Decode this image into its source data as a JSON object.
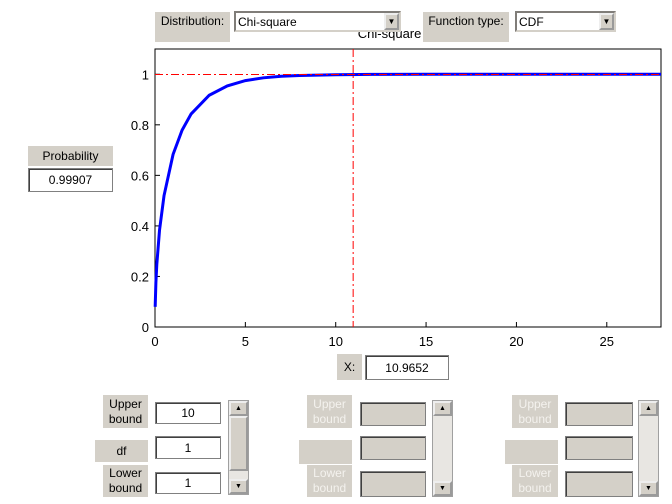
{
  "controls": {
    "distribution_label": "Distribution:",
    "distribution": "Chi-square",
    "function_type_label": "Function type:",
    "function_type": "CDF",
    "probability_label": "Probability",
    "x_label": "X:"
  },
  "parameters": [
    {
      "upper_label": "Upper bound",
      "upper": "10",
      "name": "df",
      "value": "1",
      "lower_label": "Lower bound",
      "lower": "1"
    },
    {
      "upper_label": "Upper bound",
      "lower_label": "Lower bound"
    },
    {
      "upper_label": "Upper bound",
      "lower_label": "Lower bound"
    }
  ],
  "chart_data": {
    "type": "line",
    "title": "Chi-square p",
    "x": [
      0.01,
      0.05,
      0.1,
      0.25,
      0.5,
      1,
      1.5,
      2,
      3,
      4,
      5,
      6,
      7,
      8,
      10,
      12,
      15,
      20,
      28
    ],
    "series": [
      {
        "color": "#0000ff",
        "values": [
          0.08,
          0.177,
          0.248,
          0.383,
          0.52,
          0.683,
          0.779,
          0.843,
          0.917,
          0.954,
          0.975,
          0.986,
          0.992,
          0.995,
          0.998,
          0.9995,
          0.9999,
          1,
          1
        ]
      }
    ],
    "xlim": [
      0,
      28
    ],
    "ylim": [
      0,
      1.1
    ],
    "xticks": [
      0,
      5,
      10,
      15,
      20,
      25
    ],
    "yticks": [
      0,
      0.2,
      0.4,
      0.6,
      0.8,
      1
    ],
    "crosshair": {
      "x": 10.9652,
      "y": 0.99907,
      "color": "#ff0000"
    }
  }
}
